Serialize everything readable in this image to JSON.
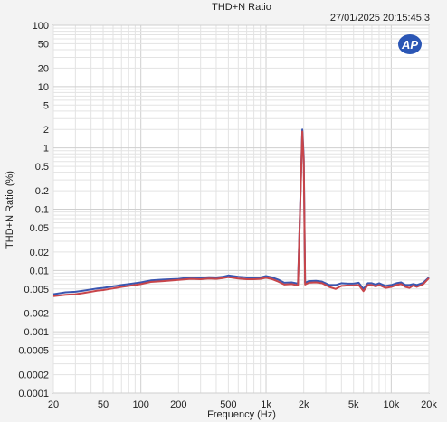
{
  "chart_data": {
    "type": "line",
    "title": "THD+N Ratio",
    "timestamp": "27/01/2025 20:15:45.3",
    "logo_text": "AP",
    "xlabel": "Frequency (Hz)",
    "ylabel": "THD+N Ratio (%)",
    "x_scale": "log",
    "y_scale": "log",
    "xlim": [
      20,
      20000
    ],
    "ylim": [
      0.0001,
      100
    ],
    "grid": true,
    "x_ticks": [
      {
        "value": 20,
        "label": "20"
      },
      {
        "value": 50,
        "label": "50"
      },
      {
        "value": 100,
        "label": "100"
      },
      {
        "value": 200,
        "label": "200"
      },
      {
        "value": 500,
        "label": "500"
      },
      {
        "value": 1000,
        "label": "1k"
      },
      {
        "value": 2000,
        "label": "2k"
      },
      {
        "value": 5000,
        "label": "5k"
      },
      {
        "value": 10000,
        "label": "10k"
      },
      {
        "value": 20000,
        "label": "20k"
      }
    ],
    "y_ticks": [
      {
        "value": 100,
        "label": "100"
      },
      {
        "value": 50,
        "label": "50"
      },
      {
        "value": 20,
        "label": "20"
      },
      {
        "value": 10,
        "label": "10"
      },
      {
        "value": 5,
        "label": "5"
      },
      {
        "value": 2,
        "label": "2"
      },
      {
        "value": 1,
        "label": "1"
      },
      {
        "value": 0.5,
        "label": "0.5"
      },
      {
        "value": 0.2,
        "label": "0.2"
      },
      {
        "value": 0.1,
        "label": "0.1"
      },
      {
        "value": 0.05,
        "label": "0.05"
      },
      {
        "value": 0.02,
        "label": "0.02"
      },
      {
        "value": 0.01,
        "label": "0.01"
      },
      {
        "value": 0.005,
        "label": "0.005"
      },
      {
        "value": 0.002,
        "label": "0.002"
      },
      {
        "value": 0.001,
        "label": "0.001"
      },
      {
        "value": 0.0005,
        "label": "0.0005"
      },
      {
        "value": 0.0002,
        "label": "0.0002"
      },
      {
        "value": 0.0001,
        "label": "0.0001"
      }
    ],
    "series": [
      {
        "color": "#3a56b0",
        "x": [
          20,
          25,
          30,
          35,
          40,
          45,
          50,
          60,
          70,
          80,
          100,
          120,
          150,
          200,
          250,
          300,
          350,
          400,
          450,
          500,
          600,
          700,
          800,
          900,
          1000,
          1100,
          1250,
          1400,
          1600,
          1800,
          1950,
          2000,
          2050,
          2200,
          2500,
          2800,
          3200,
          3600,
          4000,
          4500,
          5000,
          5500,
          6000,
          6500,
          7000,
          7500,
          8000,
          9000,
          10000,
          11000,
          12000,
          13000,
          14000,
          15000,
          16000,
          18000,
          20000
        ],
        "y": [
          0.0041,
          0.0044,
          0.0045,
          0.0047,
          0.0049,
          0.0051,
          0.0052,
          0.0055,
          0.0058,
          0.006,
          0.0064,
          0.0069,
          0.0071,
          0.0073,
          0.0077,
          0.0076,
          0.0078,
          0.0077,
          0.0079,
          0.0083,
          0.0079,
          0.0077,
          0.0076,
          0.0077,
          0.0081,
          0.0078,
          0.0071,
          0.0063,
          0.0064,
          0.0061,
          2.0,
          0.7,
          0.0063,
          0.0067,
          0.0068,
          0.0066,
          0.0058,
          0.0058,
          0.0062,
          0.0061,
          0.0061,
          0.0063,
          0.005,
          0.0062,
          0.0062,
          0.0059,
          0.0062,
          0.0056,
          0.0058,
          0.0062,
          0.0064,
          0.0058,
          0.0058,
          0.006,
          0.0058,
          0.0063,
          0.0077
        ]
      },
      {
        "color": "#c8454a",
        "x": [
          20,
          25,
          30,
          35,
          40,
          45,
          50,
          60,
          70,
          80,
          100,
          120,
          150,
          200,
          250,
          300,
          350,
          400,
          450,
          500,
          600,
          700,
          800,
          900,
          1000,
          1100,
          1250,
          1400,
          1600,
          1800,
          1950,
          2000,
          2050,
          2200,
          2500,
          2800,
          3200,
          3600,
          4000,
          4500,
          5000,
          5500,
          6000,
          6500,
          7000,
          7500,
          8000,
          9000,
          10000,
          11000,
          12000,
          13000,
          14000,
          15000,
          16000,
          18000,
          20000
        ],
        "y": [
          0.0038,
          0.004,
          0.0041,
          0.0043,
          0.0045,
          0.0047,
          0.0048,
          0.0051,
          0.0054,
          0.0056,
          0.006,
          0.0065,
          0.0067,
          0.007,
          0.0073,
          0.0072,
          0.0074,
          0.0073,
          0.0075,
          0.0078,
          0.0074,
          0.0072,
          0.0072,
          0.0073,
          0.0076,
          0.0073,
          0.0066,
          0.0059,
          0.006,
          0.0057,
          1.85,
          0.6,
          0.0059,
          0.0063,
          0.0064,
          0.0062,
          0.0054,
          0.005,
          0.0056,
          0.0057,
          0.0057,
          0.0058,
          0.0046,
          0.0058,
          0.0058,
          0.0055,
          0.0058,
          0.0052,
          0.0054,
          0.0058,
          0.006,
          0.0054,
          0.0052,
          0.0057,
          0.0054,
          0.006,
          0.0075
        ]
      }
    ]
  }
}
